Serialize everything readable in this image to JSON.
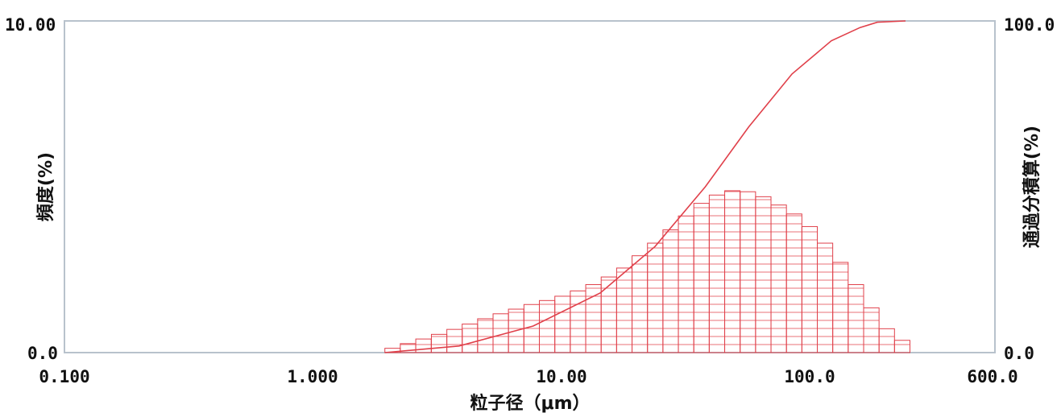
{
  "chart_data": {
    "type": "bar",
    "xlabel": "粒子径（μm）",
    "ylabel_left": "頻度(%)",
    "ylabel_right": "通過分積算(%)",
    "x_scale": "log",
    "xlim": [
      0.1,
      600.0
    ],
    "ylim_left": [
      0,
      10.0
    ],
    "ylim_right": [
      0,
      100.0
    ],
    "x_ticks": [
      0.1,
      1.0,
      10.0,
      100.0,
      600.0
    ],
    "x_tick_labels": [
      "0.100",
      "1.000",
      "10.00",
      "100.0",
      "600.0"
    ],
    "y_left_tick_labels": [
      "0.0",
      "10.00"
    ],
    "y_right_tick_labels": [
      "0.0",
      "100.0"
    ],
    "grid": false,
    "bar_color": "#e0404a",
    "line_color": "#e0404a",
    "bins": [
      {
        "x": 2.0,
        "value": 0.13
      },
      {
        "x": 2.31,
        "value": 0.27
      },
      {
        "x": 2.67,
        "value": 0.41
      },
      {
        "x": 3.09,
        "value": 0.55
      },
      {
        "x": 3.57,
        "value": 0.7
      },
      {
        "x": 4.12,
        "value": 0.86
      },
      {
        "x": 4.76,
        "value": 1.02
      },
      {
        "x": 5.5,
        "value": 1.17
      },
      {
        "x": 6.35,
        "value": 1.31
      },
      {
        "x": 7.34,
        "value": 1.45
      },
      {
        "x": 8.48,
        "value": 1.57
      },
      {
        "x": 9.8,
        "value": 1.7
      },
      {
        "x": 11.32,
        "value": 1.86
      },
      {
        "x": 13.08,
        "value": 2.05
      },
      {
        "x": 15.11,
        "value": 2.28
      },
      {
        "x": 17.46,
        "value": 2.55
      },
      {
        "x": 20.17,
        "value": 2.92
      },
      {
        "x": 23.3,
        "value": 3.3
      },
      {
        "x": 26.92,
        "value": 3.7
      },
      {
        "x": 31.1,
        "value": 4.12
      },
      {
        "x": 35.93,
        "value": 4.5
      },
      {
        "x": 41.51,
        "value": 4.75
      },
      {
        "x": 47.96,
        "value": 4.88
      },
      {
        "x": 55.41,
        "value": 4.85
      },
      {
        "x": 64.01,
        "value": 4.7
      },
      {
        "x": 73.95,
        "value": 4.45
      },
      {
        "x": 85.44,
        "value": 4.18
      },
      {
        "x": 98.71,
        "value": 3.8
      },
      {
        "x": 114.0,
        "value": 3.3
      },
      {
        "x": 131.7,
        "value": 2.72
      },
      {
        "x": 152.2,
        "value": 2.05
      },
      {
        "x": 175.8,
        "value": 1.35
      },
      {
        "x": 203.1,
        "value": 0.72
      },
      {
        "x": 234.7,
        "value": 0.37
      }
    ],
    "cumulative": [
      {
        "x": 2.0,
        "y": 0.0
      },
      {
        "x": 4.0,
        "y": 2.0
      },
      {
        "x": 8.0,
        "y": 8.0
      },
      {
        "x": 15.0,
        "y": 18.0
      },
      {
        "x": 25.0,
        "y": 32.0
      },
      {
        "x": 40.0,
        "y": 50.0
      },
      {
        "x": 60.0,
        "y": 68.0
      },
      {
        "x": 90.0,
        "y": 84.0
      },
      {
        "x": 130.0,
        "y": 94.0
      },
      {
        "x": 170.0,
        "y": 98.0
      },
      {
        "x": 200.0,
        "y": 99.6
      },
      {
        "x": 260.0,
        "y": 100.0
      }
    ]
  }
}
